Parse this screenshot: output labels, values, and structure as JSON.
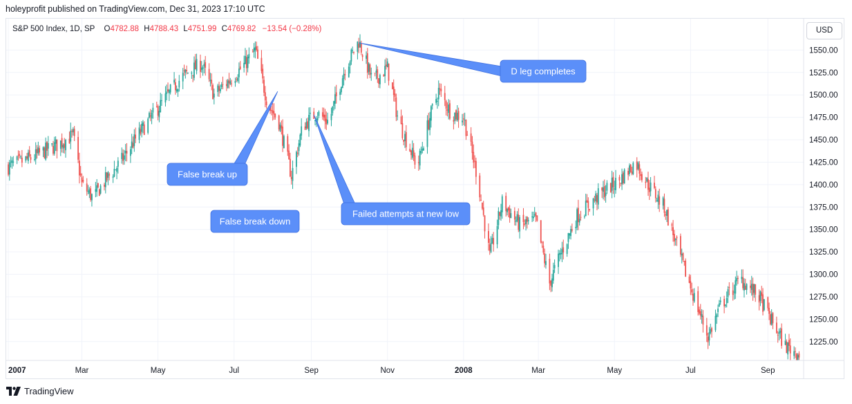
{
  "publisher_line": "holeyprofit published on TradingView.com, Dec 31, 2023 17:10 UTC",
  "legend": {
    "symbol": "S&P 500 Index, 1D, SP",
    "open_label": "O",
    "open": "4782.88",
    "high_label": "H",
    "high": "4788.43",
    "low_label": "L",
    "low": "4751.99",
    "close_label": "C",
    "close": "4769.82",
    "change": "−13.54 (−0.28%)"
  },
  "currency": "USD",
  "footer_brand": "TradingView",
  "colors": {
    "up": "#26a69a",
    "down": "#ef5350",
    "annotation": "#5b8ff9",
    "grid": "#f0f3fa"
  },
  "chart_data": {
    "type": "candlestick",
    "y_range": [
      1204,
      1585
    ],
    "y_ticks": [
      "1550.00",
      "1525.00",
      "1500.00",
      "1475.00",
      "1450.00",
      "1425.00",
      "1400.00",
      "1375.00",
      "1350.00",
      "1325.00",
      "1300.00",
      "1275.00",
      "1250.00",
      "1225.00"
    ],
    "x_range": [
      "2007-01-01",
      "2008-09-28"
    ],
    "x_ticks": [
      {
        "label": "2007",
        "date": "2007-01-01",
        "major": true
      },
      {
        "label": "Mar",
        "date": "2007-03-01",
        "major": false
      },
      {
        "label": "May",
        "date": "2007-05-01",
        "major": false
      },
      {
        "label": "Jul",
        "date": "2007-07-01",
        "major": false
      },
      {
        "label": "Sep",
        "date": "2007-09-01",
        "major": false
      },
      {
        "label": "Nov",
        "date": "2007-11-01",
        "major": false
      },
      {
        "label": "2008",
        "date": "2008-01-01",
        "major": true
      },
      {
        "label": "Mar",
        "date": "2008-03-01",
        "major": false
      },
      {
        "label": "May",
        "date": "2008-05-01",
        "major": false
      },
      {
        "label": "Jul",
        "date": "2008-07-01",
        "major": false
      },
      {
        "label": "Sep",
        "date": "2008-09-01",
        "major": false
      }
    ],
    "closes": [
      {
        "date": "2007-01-01",
        "close": 1420
      },
      {
        "date": "2007-01-20",
        "close": 1430
      },
      {
        "date": "2007-02-10",
        "close": 1445
      },
      {
        "date": "2007-02-22",
        "close": 1455
      },
      {
        "date": "2007-03-01",
        "close": 1400
      },
      {
        "date": "2007-03-10",
        "close": 1385
      },
      {
        "date": "2007-03-20",
        "close": 1405
      },
      {
        "date": "2007-04-01",
        "close": 1425
      },
      {
        "date": "2007-04-15",
        "close": 1455
      },
      {
        "date": "2007-05-01",
        "close": 1485
      },
      {
        "date": "2007-05-20",
        "close": 1520
      },
      {
        "date": "2007-06-05",
        "close": 1535
      },
      {
        "date": "2007-06-15",
        "close": 1500
      },
      {
        "date": "2007-06-30",
        "close": 1520
      },
      {
        "date": "2007-07-10",
        "close": 1535
      },
      {
        "date": "2007-07-18",
        "close": 1550
      },
      {
        "date": "2007-07-28",
        "close": 1490
      },
      {
        "date": "2007-08-06",
        "close": 1470
      },
      {
        "date": "2007-08-16",
        "close": 1410
      },
      {
        "date": "2007-08-25",
        "close": 1465
      },
      {
        "date": "2007-09-05",
        "close": 1480
      },
      {
        "date": "2007-09-15",
        "close": 1470
      },
      {
        "date": "2007-09-28",
        "close": 1530
      },
      {
        "date": "2007-10-09",
        "close": 1560
      },
      {
        "date": "2007-10-20",
        "close": 1515
      },
      {
        "date": "2007-11-01",
        "close": 1530
      },
      {
        "date": "2007-11-10",
        "close": 1470
      },
      {
        "date": "2007-11-25",
        "close": 1420
      },
      {
        "date": "2007-12-05",
        "close": 1475
      },
      {
        "date": "2007-12-12",
        "close": 1505
      },
      {
        "date": "2007-12-22",
        "close": 1480
      },
      {
        "date": "2008-01-01",
        "close": 1475
      },
      {
        "date": "2008-01-12",
        "close": 1410
      },
      {
        "date": "2008-01-22",
        "close": 1320
      },
      {
        "date": "2008-02-01",
        "close": 1380
      },
      {
        "date": "2008-02-15",
        "close": 1355
      },
      {
        "date": "2008-02-28",
        "close": 1360
      },
      {
        "date": "2008-03-10",
        "close": 1290
      },
      {
        "date": "2008-03-18",
        "close": 1320
      },
      {
        "date": "2008-04-01",
        "close": 1365
      },
      {
        "date": "2008-04-20",
        "close": 1390
      },
      {
        "date": "2008-05-05",
        "close": 1405
      },
      {
        "date": "2008-05-18",
        "close": 1425
      },
      {
        "date": "2008-05-28",
        "close": 1400
      },
      {
        "date": "2008-06-10",
        "close": 1375
      },
      {
        "date": "2008-06-25",
        "close": 1310
      },
      {
        "date": "2008-07-10",
        "close": 1250
      },
      {
        "date": "2008-07-15",
        "close": 1230
      },
      {
        "date": "2008-07-25",
        "close": 1265
      },
      {
        "date": "2008-08-10",
        "close": 1295
      },
      {
        "date": "2008-08-25",
        "close": 1275
      },
      {
        "date": "2008-09-05",
        "close": 1245
      },
      {
        "date": "2008-09-15",
        "close": 1220
      },
      {
        "date": "2008-09-28",
        "close": 1210
      }
    ],
    "annotations": [
      {
        "text": "D leg completes",
        "anchor_date": "2007-10-09",
        "anchor_price": 1558
      },
      {
        "text": "False break up",
        "anchor_date": "2007-08-05",
        "anchor_price": 1504
      },
      {
        "text": "False break down",
        "anchor_date": "2007-08-20",
        "anchor_price": 1370
      },
      {
        "text": "Failed attempts at new low",
        "anchor_date": "2007-09-03",
        "anchor_price": 1478
      }
    ]
  }
}
